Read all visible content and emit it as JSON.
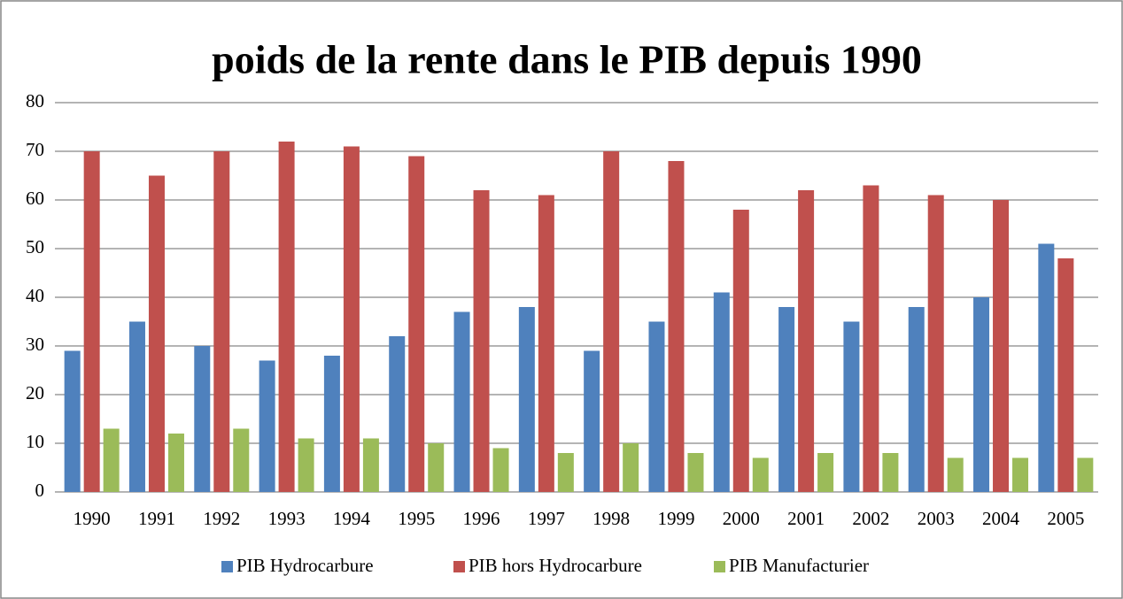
{
  "chart_data": {
    "type": "bar",
    "title": "poids de la rente dans le PIB depuis 1990",
    "categories": [
      "1990",
      "1991",
      "1992",
      "1993",
      "1994",
      "1995",
      "1996",
      "1997",
      "1998",
      "1999",
      "2000",
      "2001",
      "2002",
      "2003",
      "2004",
      "2005"
    ],
    "series": [
      {
        "name": "PIB Hydrocarbure",
        "color": "#4f81bd",
        "values": [
          29,
          35,
          30,
          27,
          28,
          32,
          37,
          38,
          29,
          35,
          41,
          38,
          35,
          38,
          40,
          51
        ]
      },
      {
        "name": "PIB hors Hydrocarbure",
        "color": "#c0504d",
        "values": [
          70,
          65,
          70,
          72,
          71,
          69,
          62,
          61,
          70,
          68,
          58,
          62,
          63,
          61,
          60,
          48
        ]
      },
      {
        "name": "PIB Manufacturier",
        "color": "#9bbb59",
        "values": [
          13,
          12,
          13,
          11,
          11,
          10,
          9,
          8,
          10,
          8,
          7,
          8,
          8,
          7,
          7,
          7
        ]
      }
    ],
    "ylim": [
      0,
      80
    ],
    "yticks": [
      0,
      10,
      20,
      30,
      40,
      50,
      60,
      70,
      80
    ],
    "grid": true,
    "legend": "bottom"
  }
}
